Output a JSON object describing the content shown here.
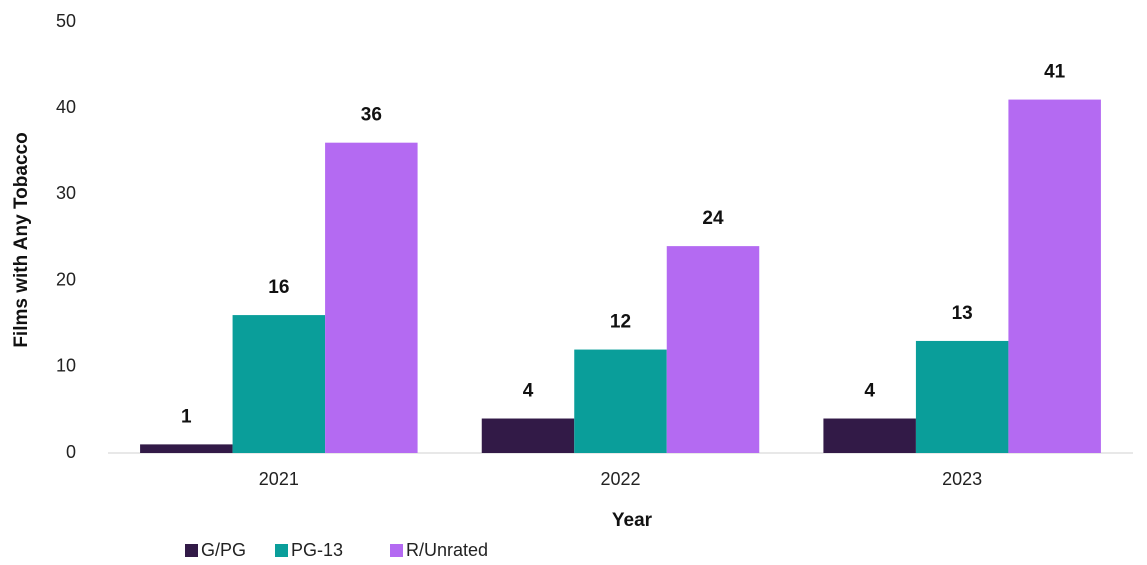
{
  "chart_data": {
    "type": "bar",
    "categories": [
      "2021",
      "2022",
      "2023"
    ],
    "series": [
      {
        "name": "G/PG",
        "color": "#321a47",
        "values": [
          1,
          4,
          4
        ]
      },
      {
        "name": "PG-13",
        "color": "#0a9e9a",
        "values": [
          16,
          12,
          13
        ]
      },
      {
        "name": "R/Unrated",
        "color": "#b46af2",
        "values": [
          36,
          24,
          41
        ]
      }
    ],
    "x_label": "Year",
    "y_label": "Films with Any Tobacco",
    "ylim": [
      0,
      50
    ],
    "yticks": [
      0,
      10,
      20,
      30,
      40,
      50
    ],
    "grid": false,
    "legend": "bottom"
  }
}
